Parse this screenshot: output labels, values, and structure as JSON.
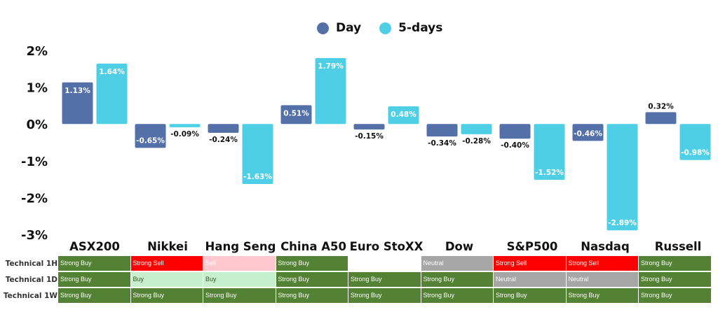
{
  "legend": [
    {
      "name": "Day",
      "color": "#5470a8"
    },
    {
      "name": "5-days",
      "color": "#4fcfe6"
    }
  ],
  "chart_data": {
    "type": "bar",
    "categories": [
      "ASX200",
      "Nikkei",
      "Hang Seng",
      "China A50",
      "Euro StoXX",
      "Dow",
      "S&P500",
      "Nasdaq",
      "Russell"
    ],
    "series": [
      {
        "name": "Day",
        "color": "#5470a8",
        "values": [
          1.13,
          -0.65,
          -0.24,
          0.51,
          -0.15,
          -0.34,
          -0.4,
          -0.46,
          0.32
        ],
        "labels": [
          "1.13%",
          "-0.65%",
          "-0.24%",
          "0.51%",
          "-0.15%",
          "-0.34%",
          "-0.40%",
          "-0.46%",
          "0.32%"
        ]
      },
      {
        "name": "5-days",
        "color": "#4fcfe6",
        "values": [
          1.64,
          -0.09,
          -1.63,
          1.79,
          0.48,
          -0.28,
          -1.52,
          -2.89,
          -0.98
        ],
        "labels": [
          "1.64%",
          "-0.09%",
          "-1.63%",
          "1.79%",
          "0.48%",
          "-0.28%",
          "-1.52%",
          "-2.89%",
          "-0.98%"
        ]
      }
    ],
    "ylim": [
      -3,
      2
    ],
    "yticks": [
      2,
      1,
      0,
      -1,
      -2,
      -3
    ],
    "ytick_labels": [
      "2%",
      "1%",
      "0%",
      "-1%",
      "-2%",
      "-3%"
    ],
    "grid": false,
    "legend_position": "top-center"
  },
  "technicals": {
    "rows": [
      {
        "label": "Technical 1H",
        "signals": [
          "Strong Buy",
          "Strong Sell",
          "Sell",
          "Strong Buy",
          "",
          "Neutral",
          "Strong Sell",
          "Strong Sell",
          "Strong Buy"
        ]
      },
      {
        "label": "Technical 1D",
        "signals": [
          "Strong Buy",
          "Buy",
          "Buy",
          "Strong Buy",
          "Strong Buy",
          "Strong Buy",
          "Neutral",
          "Neutral",
          "Strong Buy"
        ]
      },
      {
        "label": "Technical 1W",
        "signals": [
          "Strong Buy",
          "Strong Buy",
          "Strong Buy",
          "Strong Buy",
          "Strong Buy",
          "Strong Buy",
          "Strong Buy",
          "Strong Buy",
          "Strong Buy"
        ]
      }
    ],
    "signal_colors": {
      "Strong Buy": {
        "bg": "#548235",
        "fg": "#ffffff"
      },
      "Buy": {
        "bg": "#c6efce",
        "fg": "#375623"
      },
      "Strong Sell": {
        "bg": "#ff0000",
        "fg": "#ffffff"
      },
      "Sell": {
        "bg": "#ffc7ce",
        "fg": "#ffffff"
      },
      "Neutral": {
        "bg": "#a6a6a6",
        "fg": "#ffffff"
      },
      "": {
        "bg": "#ffffff",
        "fg": "#ffffff"
      }
    }
  }
}
